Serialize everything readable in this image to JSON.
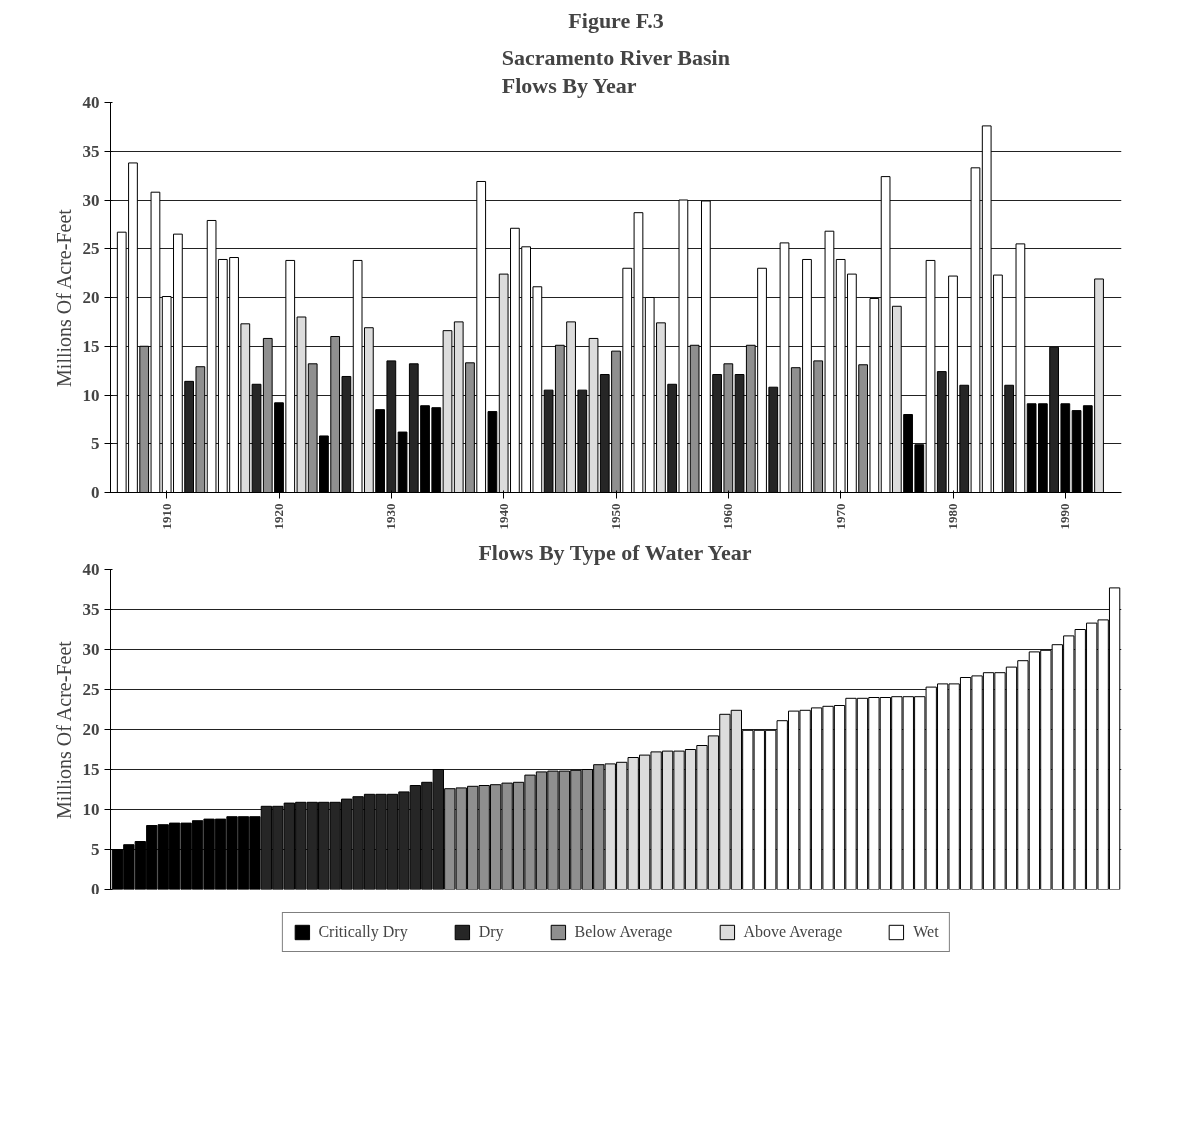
{
  "chart_data": [
    {
      "type": "bar",
      "title": "Figure F.3",
      "subtitle": "Sacramento River Basin\nFlows By Year",
      "ylabel": "Millions Of Acre-Feet",
      "x": [
        1906,
        1907,
        1908,
        1909,
        1910,
        1911,
        1912,
        1913,
        1914,
        1915,
        1916,
        1917,
        1918,
        1919,
        1920,
        1921,
        1922,
        1923,
        1924,
        1925,
        1926,
        1927,
        1928,
        1929,
        1930,
        1931,
        1932,
        1933,
        1934,
        1935,
        1936,
        1937,
        1938,
        1939,
        1940,
        1941,
        1942,
        1943,
        1944,
        1945,
        1946,
        1947,
        1948,
        1949,
        1950,
        1951,
        1952,
        1953,
        1954,
        1955,
        1956,
        1957,
        1958,
        1959,
        1960,
        1961,
        1962,
        1963,
        1964,
        1965,
        1966,
        1967,
        1968,
        1969,
        1970,
        1971,
        1972,
        1973,
        1974,
        1975,
        1976,
        1977,
        1978,
        1979,
        1980,
        1981,
        1982,
        1983,
        1984,
        1985,
        1986,
        1987,
        1988,
        1989,
        1990,
        1991,
        1992,
        1993
      ],
      "values": [
        26.7,
        33.8,
        15.0,
        30.8,
        20.1,
        26.5,
        11.4,
        12.9,
        27.9,
        23.9,
        24.1,
        17.3,
        11.1,
        15.8,
        9.2,
        23.8,
        18.0,
        13.2,
        5.8,
        16.0,
        11.9,
        23.8,
        16.9,
        8.5,
        13.5,
        6.2,
        13.2,
        8.9,
        8.7,
        16.6,
        17.5,
        13.3,
        31.9,
        8.3,
        22.4,
        27.1,
        25.2,
        21.1,
        10.5,
        15.1,
        17.5,
        10.5,
        15.8,
        12.1,
        14.5,
        23.0,
        28.7,
        20.0,
        17.4,
        11.1,
        30.0,
        15.1,
        29.9,
        12.1,
        13.2,
        12.1,
        15.1,
        23.0,
        10.8,
        25.6,
        12.8,
        23.9,
        13.5,
        26.8,
        23.9,
        22.4,
        13.1,
        19.9,
        32.4,
        19.1,
        8.0,
        4.9,
        23.8,
        12.4,
        22.2,
        11.0,
        33.3,
        37.6,
        22.3,
        11.0,
        25.5,
        9.1,
        9.1,
        14.9,
        9.1,
        8.4,
        8.9,
        21.9
      ],
      "colors": [
        "#ffffff",
        "#ffffff",
        "#8f8f8f",
        "#ffffff",
        "#ffffff",
        "#ffffff",
        "#262626",
        "#8f8f8f",
        "#ffffff",
        "#ffffff",
        "#ffffff",
        "#dcdcdc",
        "#262626",
        "#8f8f8f",
        "#000000",
        "#ffffff",
        "#dcdcdc",
        "#8f8f8f",
        "#000000",
        "#8f8f8f",
        "#262626",
        "#ffffff",
        "#dcdcdc",
        "#000000",
        "#262626",
        "#000000",
        "#262626",
        "#000000",
        "#000000",
        "#dcdcdc",
        "#dcdcdc",
        "#8f8f8f",
        "#ffffff",
        "#000000",
        "#dcdcdc",
        "#ffffff",
        "#ffffff",
        "#ffffff",
        "#262626",
        "#8f8f8f",
        "#dcdcdc",
        "#262626",
        "#dcdcdc",
        "#262626",
        "#8f8f8f",
        "#ffffff",
        "#ffffff",
        "#ffffff",
        "#dcdcdc",
        "#262626",
        "#ffffff",
        "#8f8f8f",
        "#ffffff",
        "#262626",
        "#8f8f8f",
        "#262626",
        "#8f8f8f",
        "#ffffff",
        "#262626",
        "#ffffff",
        "#8f8f8f",
        "#ffffff",
        "#8f8f8f",
        "#ffffff",
        "#ffffff",
        "#ffffff",
        "#8f8f8f",
        "#ffffff",
        "#ffffff",
        "#dcdcdc",
        "#000000",
        "#000000",
        "#ffffff",
        "#262626",
        "#ffffff",
        "#262626",
        "#ffffff",
        "#ffffff",
        "#ffffff",
        "#262626",
        "#ffffff",
        "#000000",
        "#000000",
        "#262626",
        "#000000",
        "#000000",
        "#000000",
        "#dcdcdc"
      ],
      "xlim": [
        1905,
        1995
      ],
      "xticks": [
        1910,
        1920,
        1930,
        1940,
        1950,
        1960,
        1970,
        1980,
        1990
      ],
      "ylim": [
        0,
        40
      ],
      "yticks": [
        0,
        5,
        10,
        15,
        20,
        25,
        30,
        35,
        40
      ],
      "grid": "y"
    },
    {
      "type": "bar",
      "title": "Flows By Type of Water Year",
      "ylabel": "Millions Of Acre-Feet",
      "categories": [
        null,
        null,
        null,
        null,
        null,
        null,
        null,
        null,
        null,
        null,
        null,
        null,
        null,
        null,
        null,
        null,
        null,
        null,
        null,
        null,
        null,
        null,
        null,
        null,
        null,
        null,
        null,
        null,
        null,
        null,
        null,
        null,
        null,
        null,
        null,
        null,
        null,
        null,
        null,
        null,
        null,
        null,
        null,
        null,
        null,
        null,
        null,
        null,
        null,
        null,
        null,
        null,
        null,
        null,
        null,
        null,
        null,
        null,
        null,
        null,
        null,
        null,
        null,
        null,
        null,
        null,
        null,
        null,
        null,
        null,
        null,
        null,
        null,
        null,
        null,
        null,
        null,
        null,
        null,
        null,
        null,
        null,
        null,
        null,
        null,
        null,
        null,
        null
      ],
      "series": [
        {
          "name": "Critically Dry",
          "color": "#000000",
          "values": [
            5.0,
            5.6,
            6.0,
            8.0,
            8.1,
            8.3,
            8.3,
            8.6,
            8.8,
            8.8,
            9.1,
            9.1,
            9.1,
            null,
            null,
            null,
            null,
            null,
            null,
            null,
            null,
            null,
            null,
            null,
            null,
            null,
            null,
            null,
            null,
            null,
            null,
            null,
            null,
            null,
            null,
            null,
            null,
            null,
            null,
            null,
            null,
            null,
            null,
            null,
            null,
            null,
            null,
            null,
            null,
            null,
            null,
            null,
            null,
            null,
            null,
            null,
            null,
            null,
            null,
            null,
            null,
            null,
            null,
            null,
            null,
            null,
            null,
            null,
            null,
            null,
            null,
            null,
            null,
            null,
            null,
            null,
            null,
            null,
            null,
            null,
            null,
            null,
            null,
            null,
            null,
            null,
            null,
            null
          ]
        },
        {
          "name": "Dry",
          "color": "#262626",
          "values": [
            null,
            null,
            null,
            null,
            null,
            null,
            null,
            null,
            null,
            null,
            null,
            null,
            null,
            10.4,
            10.4,
            10.8,
            10.9,
            10.9,
            10.9,
            10.9,
            11.3,
            11.6,
            11.9,
            11.9,
            11.9,
            12.2,
            13.0,
            13.4,
            15.0,
            null,
            null,
            null,
            null,
            null,
            null,
            null,
            null,
            null,
            null,
            null,
            null,
            null,
            null,
            null,
            null,
            null,
            null,
            null,
            null,
            null,
            null,
            null,
            null,
            null,
            null,
            null,
            null,
            null,
            null,
            null,
            null,
            null,
            null,
            null,
            null,
            null,
            null,
            null,
            null,
            null,
            null,
            null,
            null,
            null,
            null,
            null,
            null,
            null,
            null,
            null,
            null,
            null,
            null,
            null,
            null,
            null,
            null,
            null
          ]
        },
        {
          "name": "Below Average",
          "color": "#8f8f8f",
          "values": [
            null,
            null,
            null,
            null,
            null,
            null,
            null,
            null,
            null,
            null,
            null,
            null,
            null,
            null,
            null,
            null,
            null,
            null,
            null,
            null,
            null,
            null,
            null,
            null,
            null,
            null,
            null,
            null,
            null,
            12.6,
            12.7,
            12.9,
            13.0,
            13.1,
            13.3,
            13.4,
            14.3,
            14.7,
            14.8,
            14.8,
            14.9,
            15.0,
            15.6,
            null,
            null,
            null,
            null,
            null,
            null,
            null,
            null,
            null,
            null,
            null,
            null,
            null,
            null,
            null,
            null,
            null,
            null,
            null,
            null,
            null,
            null,
            null,
            null,
            null,
            null,
            null,
            null,
            null,
            null,
            null,
            null,
            null,
            null,
            null,
            null,
            null,
            null,
            null,
            null,
            null,
            null,
            null,
            null,
            null
          ]
        },
        {
          "name": "Above Average",
          "color": "#dcdcdc",
          "values": [
            null,
            null,
            null,
            null,
            null,
            null,
            null,
            null,
            null,
            null,
            null,
            null,
            null,
            null,
            null,
            null,
            null,
            null,
            null,
            null,
            null,
            null,
            null,
            null,
            null,
            null,
            null,
            null,
            null,
            null,
            null,
            null,
            null,
            null,
            null,
            null,
            null,
            null,
            null,
            null,
            null,
            null,
            null,
            15.7,
            15.9,
            16.5,
            16.8,
            17.2,
            17.3,
            17.3,
            17.5,
            18.0,
            19.2,
            21.9,
            22.4,
            null,
            null,
            null,
            null,
            null,
            null,
            null,
            null,
            null,
            null,
            null,
            null,
            null,
            null,
            null,
            null,
            null,
            null,
            null,
            null,
            null,
            null,
            null,
            null,
            null,
            null,
            null,
            null,
            null,
            null,
            null,
            null,
            null
          ]
        },
        {
          "name": "Wet",
          "color": "#ffffff",
          "values": [
            null,
            null,
            null,
            null,
            null,
            null,
            null,
            null,
            null,
            null,
            null,
            null,
            null,
            null,
            null,
            null,
            null,
            null,
            null,
            null,
            null,
            null,
            null,
            null,
            null,
            null,
            null,
            null,
            null,
            null,
            null,
            null,
            null,
            null,
            null,
            null,
            null,
            null,
            null,
            null,
            null,
            null,
            null,
            null,
            null,
            null,
            null,
            null,
            null,
            null,
            null,
            null,
            null,
            null,
            null,
            19.9,
            19.9,
            19.9,
            21.1,
            22.3,
            22.4,
            22.7,
            22.9,
            23.0,
            23.9,
            23.9,
            24.0,
            24.0,
            24.1,
            24.1,
            24.1,
            25.3,
            25.7,
            25.7,
            26.5,
            26.7,
            27.1,
            27.1,
            27.8,
            28.6,
            29.7,
            29.9,
            30.6,
            31.7,
            32.5,
            33.3,
            33.7,
            37.7
          ]
        }
      ],
      "ylim": [
        0,
        40
      ],
      "yticks": [
        0,
        5,
        10,
        15,
        20,
        25,
        30,
        35,
        40
      ],
      "grid": "y",
      "legend": "bottom",
      "tick_labels": "y"
    }
  ]
}
